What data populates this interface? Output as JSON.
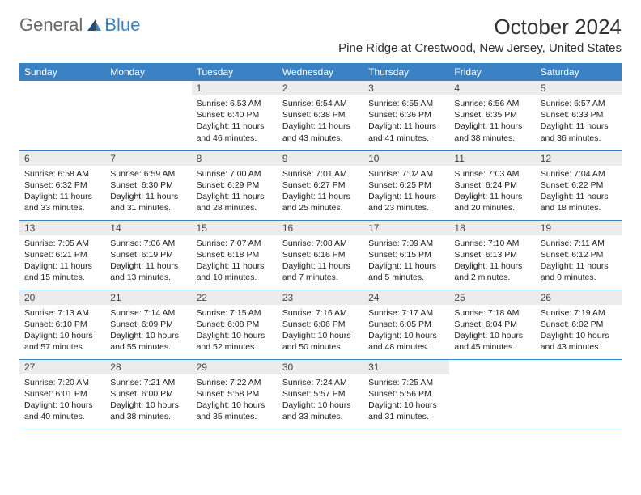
{
  "logo": {
    "text1": "General",
    "text2": "Blue"
  },
  "title": "October 2024",
  "location": "Pine Ridge at Crestwood, New Jersey, United States",
  "colors": {
    "header_bg": "#3b82c4",
    "header_text": "#ffffff",
    "daynum_bg": "#ececec",
    "border": "#3b82c4",
    "body_text": "#222222",
    "logo_gray": "#666666",
    "logo_blue": "#3b82c4"
  },
  "weekdays": [
    "Sunday",
    "Monday",
    "Tuesday",
    "Wednesday",
    "Thursday",
    "Friday",
    "Saturday"
  ],
  "weeks": [
    [
      {
        "empty": true
      },
      {
        "empty": true
      },
      {
        "n": "1",
        "sr": "6:53 AM",
        "ss": "6:40 PM",
        "dl": "11 hours and 46 minutes."
      },
      {
        "n": "2",
        "sr": "6:54 AM",
        "ss": "6:38 PM",
        "dl": "11 hours and 43 minutes."
      },
      {
        "n": "3",
        "sr": "6:55 AM",
        "ss": "6:36 PM",
        "dl": "11 hours and 41 minutes."
      },
      {
        "n": "4",
        "sr": "6:56 AM",
        "ss": "6:35 PM",
        "dl": "11 hours and 38 minutes."
      },
      {
        "n": "5",
        "sr": "6:57 AM",
        "ss": "6:33 PM",
        "dl": "11 hours and 36 minutes."
      }
    ],
    [
      {
        "n": "6",
        "sr": "6:58 AM",
        "ss": "6:32 PM",
        "dl": "11 hours and 33 minutes."
      },
      {
        "n": "7",
        "sr": "6:59 AM",
        "ss": "6:30 PM",
        "dl": "11 hours and 31 minutes."
      },
      {
        "n": "8",
        "sr": "7:00 AM",
        "ss": "6:29 PM",
        "dl": "11 hours and 28 minutes."
      },
      {
        "n": "9",
        "sr": "7:01 AM",
        "ss": "6:27 PM",
        "dl": "11 hours and 25 minutes."
      },
      {
        "n": "10",
        "sr": "7:02 AM",
        "ss": "6:25 PM",
        "dl": "11 hours and 23 minutes."
      },
      {
        "n": "11",
        "sr": "7:03 AM",
        "ss": "6:24 PM",
        "dl": "11 hours and 20 minutes."
      },
      {
        "n": "12",
        "sr": "7:04 AM",
        "ss": "6:22 PM",
        "dl": "11 hours and 18 minutes."
      }
    ],
    [
      {
        "n": "13",
        "sr": "7:05 AM",
        "ss": "6:21 PM",
        "dl": "11 hours and 15 minutes."
      },
      {
        "n": "14",
        "sr": "7:06 AM",
        "ss": "6:19 PM",
        "dl": "11 hours and 13 minutes."
      },
      {
        "n": "15",
        "sr": "7:07 AM",
        "ss": "6:18 PM",
        "dl": "11 hours and 10 minutes."
      },
      {
        "n": "16",
        "sr": "7:08 AM",
        "ss": "6:16 PM",
        "dl": "11 hours and 7 minutes."
      },
      {
        "n": "17",
        "sr": "7:09 AM",
        "ss": "6:15 PM",
        "dl": "11 hours and 5 minutes."
      },
      {
        "n": "18",
        "sr": "7:10 AM",
        "ss": "6:13 PM",
        "dl": "11 hours and 2 minutes."
      },
      {
        "n": "19",
        "sr": "7:11 AM",
        "ss": "6:12 PM",
        "dl": "11 hours and 0 minutes."
      }
    ],
    [
      {
        "n": "20",
        "sr": "7:13 AM",
        "ss": "6:10 PM",
        "dl": "10 hours and 57 minutes."
      },
      {
        "n": "21",
        "sr": "7:14 AM",
        "ss": "6:09 PM",
        "dl": "10 hours and 55 minutes."
      },
      {
        "n": "22",
        "sr": "7:15 AM",
        "ss": "6:08 PM",
        "dl": "10 hours and 52 minutes."
      },
      {
        "n": "23",
        "sr": "7:16 AM",
        "ss": "6:06 PM",
        "dl": "10 hours and 50 minutes."
      },
      {
        "n": "24",
        "sr": "7:17 AM",
        "ss": "6:05 PM",
        "dl": "10 hours and 48 minutes."
      },
      {
        "n": "25",
        "sr": "7:18 AM",
        "ss": "6:04 PM",
        "dl": "10 hours and 45 minutes."
      },
      {
        "n": "26",
        "sr": "7:19 AM",
        "ss": "6:02 PM",
        "dl": "10 hours and 43 minutes."
      }
    ],
    [
      {
        "n": "27",
        "sr": "7:20 AM",
        "ss": "6:01 PM",
        "dl": "10 hours and 40 minutes."
      },
      {
        "n": "28",
        "sr": "7:21 AM",
        "ss": "6:00 PM",
        "dl": "10 hours and 38 minutes."
      },
      {
        "n": "29",
        "sr": "7:22 AM",
        "ss": "5:58 PM",
        "dl": "10 hours and 35 minutes."
      },
      {
        "n": "30",
        "sr": "7:24 AM",
        "ss": "5:57 PM",
        "dl": "10 hours and 33 minutes."
      },
      {
        "n": "31",
        "sr": "7:25 AM",
        "ss": "5:56 PM",
        "dl": "10 hours and 31 minutes."
      },
      {
        "empty": true
      },
      {
        "empty": true
      }
    ]
  ],
  "labels": {
    "sunrise": "Sunrise:",
    "sunset": "Sunset:",
    "daylight": "Daylight:"
  }
}
